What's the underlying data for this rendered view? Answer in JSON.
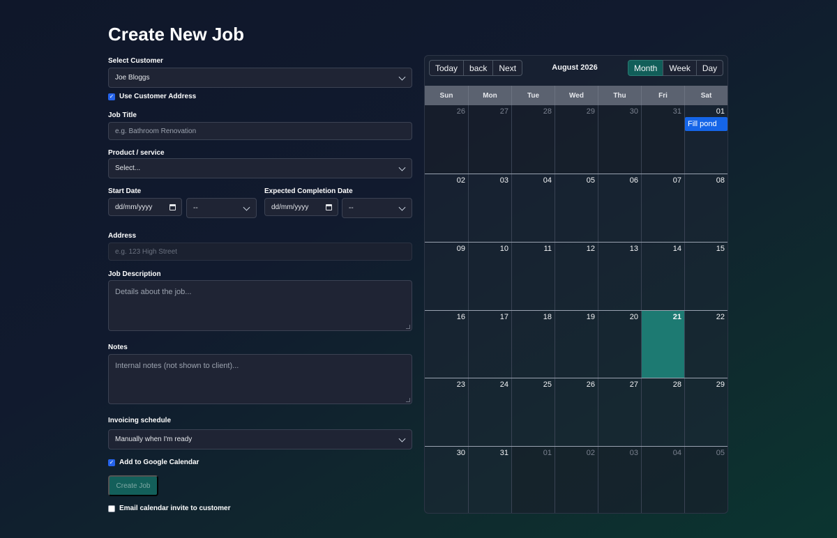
{
  "page": {
    "title": "Create New Job"
  },
  "form": {
    "customer": {
      "label": "Select Customer",
      "value": "Joe Bloggs"
    },
    "use_customer_address": {
      "label": "Use Customer Address",
      "checked": true
    },
    "job_title": {
      "label": "Job Title",
      "placeholder": "e.g. Bathroom Renovation"
    },
    "product": {
      "label": "Product / service",
      "value": "Select..."
    },
    "start_date": {
      "label": "Start Date",
      "value": "dd/mm/yyyy",
      "time": "--"
    },
    "completion_date": {
      "label": "Expected Completion Date",
      "value": "dd/mm/yyyy",
      "time": "--"
    },
    "address": {
      "label": "Address",
      "placeholder": "e.g. 123 High Street"
    },
    "description": {
      "label": "Job Description",
      "placeholder": "Details about the job..."
    },
    "notes": {
      "label": "Notes",
      "placeholder": "Internal notes (not shown to client)..."
    },
    "invoicing": {
      "label": "Invoicing schedule",
      "value": "Manually when I'm ready"
    },
    "google_calendar": {
      "label": "Add to Google Calendar",
      "checked": true
    },
    "create_button": "Create Job",
    "email_invite": {
      "label": "Email calendar invite to customer",
      "checked": false
    }
  },
  "calendar": {
    "nav": {
      "today": "Today",
      "back": "back",
      "next": "Next"
    },
    "label": "August 2026",
    "views": {
      "month": "Month",
      "week": "Week",
      "day": "Day",
      "active": "Month"
    },
    "weekdays": [
      "Sun",
      "Mon",
      "Tue",
      "Wed",
      "Thu",
      "Fri",
      "Sat"
    ],
    "weeks": [
      [
        "26",
        "27",
        "28",
        "29",
        "30",
        "31",
        "01"
      ],
      [
        "02",
        "03",
        "04",
        "05",
        "06",
        "07",
        "08"
      ],
      [
        "09",
        "10",
        "11",
        "12",
        "13",
        "14",
        "15"
      ],
      [
        "16",
        "17",
        "18",
        "19",
        "20",
        "21",
        "22"
      ],
      [
        "23",
        "24",
        "25",
        "26",
        "27",
        "28",
        "29"
      ],
      [
        "30",
        "31",
        "01",
        "02",
        "03",
        "04",
        "05"
      ]
    ],
    "today": "21",
    "event": {
      "title": "Fill pond",
      "date": "01"
    },
    "colors": {
      "accent": "#115e59",
      "today": "#1d7a72",
      "event": "#1565e8"
    }
  }
}
